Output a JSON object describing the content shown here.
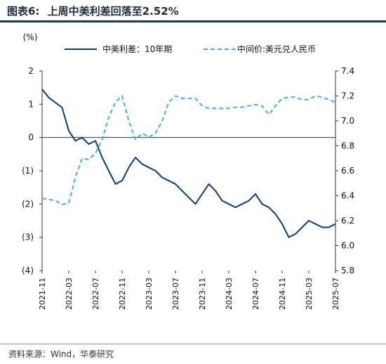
{
  "header": {
    "figure_no": "图表6:",
    "title": "上周中美利差回落至2.52%"
  },
  "footer": {
    "source": "资料来源：Wind，华泰研究"
  },
  "chart_data": {
    "type": "line",
    "left_unit": "(%)",
    "y_left": {
      "ylim": [
        -4,
        2
      ],
      "ticks": [
        2,
        1,
        0,
        -1,
        -2,
        -3,
        -4
      ],
      "tick_labels": [
        "2",
        "1",
        "0",
        "(1)",
        "(2)",
        "(3)",
        "(4)"
      ]
    },
    "y_right": {
      "ylim": [
        5.8,
        7.4
      ],
      "ticks": [
        7.4,
        7.2,
        7.0,
        6.8,
        6.6,
        6.4,
        6.2,
        6.0,
        5.8
      ],
      "tick_labels": [
        "7.4",
        "7.2",
        "7.0",
        "6.8",
        "6.6",
        "6.4",
        "6.2",
        "6.0",
        "5.8"
      ]
    },
    "x_ticks": [
      "2021-11",
      "2022-03",
      "2022-07",
      "2022-11",
      "2023-03",
      "2023-07",
      "2023-11",
      "2024-03",
      "2024-07",
      "2024-11",
      "2025-03",
      "2025-07"
    ],
    "x_range": [
      "2021-11",
      "2025-07"
    ],
    "legend_position": "top",
    "series": [
      {
        "name": "中美利差：10年期",
        "axis": "left",
        "color": "#0b3b7a",
        "style": "solid",
        "points": [
          [
            "2021-11",
            1.45
          ],
          [
            "2021-12",
            1.2
          ],
          [
            "2022-01",
            1.05
          ],
          [
            "2022-02",
            0.9
          ],
          [
            "2022-03",
            0.2
          ],
          [
            "2022-04",
            -0.1
          ],
          [
            "2022-05",
            0.0
          ],
          [
            "2022-06",
            -0.2
          ],
          [
            "2022-07",
            -0.1
          ],
          [
            "2022-08",
            -0.6
          ],
          [
            "2022-09",
            -1.0
          ],
          [
            "2022-10",
            -1.4
          ],
          [
            "2022-11",
            -1.3
          ],
          [
            "2022-12",
            -0.9
          ],
          [
            "2023-01",
            -0.6
          ],
          [
            "2023-02",
            -0.8
          ],
          [
            "2023-03",
            -0.9
          ],
          [
            "2023-04",
            -1.0
          ],
          [
            "2023-05",
            -1.2
          ],
          [
            "2023-06",
            -1.3
          ],
          [
            "2023-07",
            -1.4
          ],
          [
            "2023-08",
            -1.6
          ],
          [
            "2023-09",
            -1.8
          ],
          [
            "2023-10",
            -2.0
          ],
          [
            "2023-11",
            -1.7
          ],
          [
            "2023-12",
            -1.4
          ],
          [
            "2024-01",
            -1.6
          ],
          [
            "2024-02",
            -1.9
          ],
          [
            "2024-03",
            -2.0
          ],
          [
            "2024-04",
            -2.1
          ],
          [
            "2024-05",
            -2.0
          ],
          [
            "2024-06",
            -1.9
          ],
          [
            "2024-07",
            -1.7
          ],
          [
            "2024-08",
            -2.0
          ],
          [
            "2024-09",
            -2.1
          ],
          [
            "2024-10",
            -2.3
          ],
          [
            "2024-11",
            -2.6
          ],
          [
            "2024-12",
            -3.0
          ],
          [
            "2025-01",
            -2.9
          ],
          [
            "2025-02",
            -2.7
          ],
          [
            "2025-03",
            -2.5
          ],
          [
            "2025-04",
            -2.6
          ],
          [
            "2025-05",
            -2.7
          ],
          [
            "2025-06",
            -2.7
          ],
          [
            "2025-07",
            -2.6
          ]
        ]
      },
      {
        "name": "中间价:美元兑人民币",
        "axis": "right",
        "color": "#3fb0e8",
        "style": "dashed",
        "points": [
          [
            "2021-11",
            6.38
          ],
          [
            "2021-12",
            6.37
          ],
          [
            "2022-01",
            6.36
          ],
          [
            "2022-02",
            6.33
          ],
          [
            "2022-03",
            6.34
          ],
          [
            "2022-04",
            6.55
          ],
          [
            "2022-05",
            6.7
          ],
          [
            "2022-06",
            6.69
          ],
          [
            "2022-07",
            6.74
          ],
          [
            "2022-08",
            6.85
          ],
          [
            "2022-09",
            7.03
          ],
          [
            "2022-10",
            7.15
          ],
          [
            "2022-11",
            7.2
          ],
          [
            "2022-12",
            7.0
          ],
          [
            "2023-01",
            6.85
          ],
          [
            "2023-02",
            6.9
          ],
          [
            "2023-03",
            6.87
          ],
          [
            "2023-04",
            6.9
          ],
          [
            "2023-05",
            7.0
          ],
          [
            "2023-06",
            7.15
          ],
          [
            "2023-07",
            7.2
          ],
          [
            "2023-08",
            7.18
          ],
          [
            "2023-09",
            7.18
          ],
          [
            "2023-10",
            7.18
          ],
          [
            "2023-11",
            7.12
          ],
          [
            "2023-12",
            7.1
          ],
          [
            "2024-01",
            7.1
          ],
          [
            "2024-02",
            7.1
          ],
          [
            "2024-03",
            7.1
          ],
          [
            "2024-04",
            7.11
          ],
          [
            "2024-05",
            7.11
          ],
          [
            "2024-06",
            7.12
          ],
          [
            "2024-07",
            7.13
          ],
          [
            "2024-08",
            7.12
          ],
          [
            "2024-09",
            7.05
          ],
          [
            "2024-10",
            7.12
          ],
          [
            "2024-11",
            7.18
          ],
          [
            "2024-12",
            7.19
          ],
          [
            "2025-01",
            7.19
          ],
          [
            "2025-02",
            7.17
          ],
          [
            "2025-03",
            7.17
          ],
          [
            "2025-04",
            7.2
          ],
          [
            "2025-05",
            7.19
          ],
          [
            "2025-06",
            7.17
          ],
          [
            "2025-07",
            7.15
          ]
        ]
      }
    ]
  }
}
